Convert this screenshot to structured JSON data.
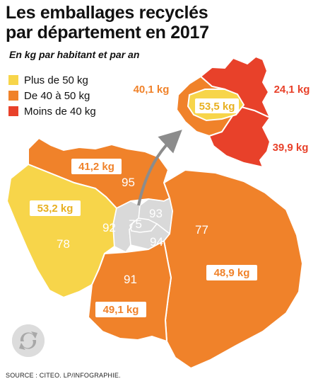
{
  "title_line1": "Les emballages recyclés",
  "title_line2": "par département en 2017",
  "subtitle": "En kg par habitant et par an",
  "legend": [
    {
      "label": "Plus de 50 kg",
      "color": "#f7d54a"
    },
    {
      "label": "De 40 à 50 kg",
      "color": "#f0822a"
    },
    {
      "label": "Moins de 40 kg",
      "color": "#e8412a"
    }
  ],
  "departments": {
    "d95": {
      "code": "95",
      "value": "41,2 kg"
    },
    "d78": {
      "code": "78",
      "value": "53,2 kg"
    },
    "d91": {
      "code": "91",
      "value": "49,1 kg"
    },
    "d77": {
      "code": "77",
      "value": "48,9 kg"
    },
    "d92": {
      "code": "92"
    },
    "d75": {
      "code": "75"
    },
    "d93": {
      "code": "93"
    },
    "d94": {
      "code": "94"
    }
  },
  "inset": {
    "d92": {
      "value": "40,1 kg"
    },
    "d75": {
      "value": "53,5 kg"
    },
    "d93": {
      "value": "24,1 kg"
    },
    "d94": {
      "value": "39,9 kg"
    }
  },
  "colors": {
    "yellow": "#f7d54a",
    "orange": "#f0822a",
    "red": "#e8412a",
    "grey": "#d9d9d9"
  },
  "source": "SOURCE : CITEO.     LP/INFOGRAPHIE."
}
